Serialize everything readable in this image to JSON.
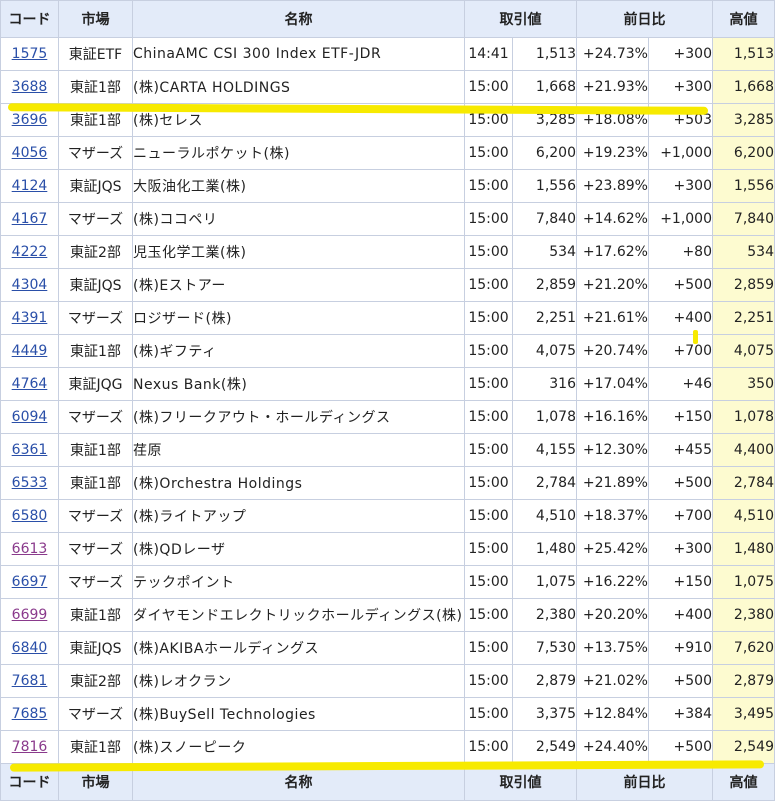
{
  "header": {
    "code": "コード",
    "market": "市場",
    "name": "名称",
    "price": "取引値",
    "change": "前日比",
    "high": "高値"
  },
  "rows": [
    {
      "code": "1575",
      "market": "東証ETF",
      "name": "ChinaAMC CSI 300 Index ETF-JDR",
      "time": "14:41",
      "price": "1,513",
      "pct": "+24.73%",
      "chg": "+300",
      "high": "1,513",
      "visited": false
    },
    {
      "code": "3688",
      "market": "東証1部",
      "name": "(株)CARTA HOLDINGS",
      "time": "15:00",
      "price": "1,668",
      "pct": "+21.93%",
      "chg": "+300",
      "high": "1,668",
      "visited": false
    },
    {
      "code": "3696",
      "market": "東証1部",
      "name": "(株)セレス",
      "time": "15:00",
      "price": "3,285",
      "pct": "+18.08%",
      "chg": "+503",
      "high": "3,285",
      "visited": false
    },
    {
      "code": "4056",
      "market": "マザーズ",
      "name": "ニューラルポケット(株)",
      "time": "15:00",
      "price": "6,200",
      "pct": "+19.23%",
      "chg": "+1,000",
      "high": "6,200",
      "visited": false
    },
    {
      "code": "4124",
      "market": "東証JQS",
      "name": "大阪油化工業(株)",
      "time": "15:00",
      "price": "1,556",
      "pct": "+23.89%",
      "chg": "+300",
      "high": "1,556",
      "visited": false
    },
    {
      "code": "4167",
      "market": "マザーズ",
      "name": "(株)ココペリ",
      "time": "15:00",
      "price": "7,840",
      "pct": "+14.62%",
      "chg": "+1,000",
      "high": "7,840",
      "visited": false
    },
    {
      "code": "4222",
      "market": "東証2部",
      "name": "児玉化学工業(株)",
      "time": "15:00",
      "price": "534",
      "pct": "+17.62%",
      "chg": "+80",
      "high": "534",
      "visited": false
    },
    {
      "code": "4304",
      "market": "東証JQS",
      "name": "(株)Eストアー",
      "time": "15:00",
      "price": "2,859",
      "pct": "+21.20%",
      "chg": "+500",
      "high": "2,859",
      "visited": false
    },
    {
      "code": "4391",
      "market": "マザーズ",
      "name": "ロジザード(株)",
      "time": "15:00",
      "price": "2,251",
      "pct": "+21.61%",
      "chg": "+400",
      "high": "2,251",
      "visited": false
    },
    {
      "code": "4449",
      "market": "東証1部",
      "name": "(株)ギフティ",
      "time": "15:00",
      "price": "4,075",
      "pct": "+20.74%",
      "chg": "+700",
      "high": "4,075",
      "visited": false
    },
    {
      "code": "4764",
      "market": "東証JQG",
      "name": "Nexus Bank(株)",
      "time": "15:00",
      "price": "316",
      "pct": "+17.04%",
      "chg": "+46",
      "high": "350",
      "visited": false
    },
    {
      "code": "6094",
      "market": "マザーズ",
      "name": "(株)フリークアウト・ホールディングス",
      "time": "15:00",
      "price": "1,078",
      "pct": "+16.16%",
      "chg": "+150",
      "high": "1,078",
      "visited": false
    },
    {
      "code": "6361",
      "market": "東証1部",
      "name": "荏原",
      "time": "15:00",
      "price": "4,155",
      "pct": "+12.30%",
      "chg": "+455",
      "high": "4,400",
      "visited": false
    },
    {
      "code": "6533",
      "market": "東証1部",
      "name": "(株)Orchestra Holdings",
      "time": "15:00",
      "price": "2,784",
      "pct": "+21.89%",
      "chg": "+500",
      "high": "2,784",
      "visited": false
    },
    {
      "code": "6580",
      "market": "マザーズ",
      "name": "(株)ライトアップ",
      "time": "15:00",
      "price": "4,510",
      "pct": "+18.37%",
      "chg": "+700",
      "high": "4,510",
      "visited": false
    },
    {
      "code": "6613",
      "market": "マザーズ",
      "name": "(株)QDレーザ",
      "time": "15:00",
      "price": "1,480",
      "pct": "+25.42%",
      "chg": "+300",
      "high": "1,480",
      "visited": true
    },
    {
      "code": "6697",
      "market": "マザーズ",
      "name": "テックポイント",
      "time": "15:00",
      "price": "1,075",
      "pct": "+16.22%",
      "chg": "+150",
      "high": "1,075",
      "visited": false
    },
    {
      "code": "6699",
      "market": "東証1部",
      "name": "ダイヤモンドエレクトリックホールディングス(株)",
      "time": "15:00",
      "price": "2,380",
      "pct": "+20.20%",
      "chg": "+400",
      "high": "2,380",
      "visited": true
    },
    {
      "code": "6840",
      "market": "東証JQS",
      "name": "(株)AKIBAホールディングス",
      "time": "15:00",
      "price": "7,530",
      "pct": "+13.75%",
      "chg": "+910",
      "high": "7,620",
      "visited": false
    },
    {
      "code": "7681",
      "market": "東証2部",
      "name": "(株)レオクラン",
      "time": "15:00",
      "price": "2,879",
      "pct": "+21.02%",
      "chg": "+500",
      "high": "2,879",
      "visited": false
    },
    {
      "code": "7685",
      "market": "マザーズ",
      "name": "(株)BuySell Technologies",
      "time": "15:00",
      "price": "3,375",
      "pct": "+12.84%",
      "chg": "+384",
      "high": "3,495",
      "visited": false
    },
    {
      "code": "7816",
      "market": "東証1部",
      "name": "(株)スノーピーク",
      "time": "15:00",
      "price": "2,549",
      "pct": "+24.40%",
      "chg": "+500",
      "high": "2,549",
      "visited": true
    }
  ],
  "colors": {
    "link": "#2a4fa8",
    "visited_link": "#8a3a8c",
    "positive_change": "#1a8f3c",
    "header_bg": "#e3ebf9",
    "high_bg": "#fdfbd0",
    "highlight_marker": "#f7ea00"
  }
}
